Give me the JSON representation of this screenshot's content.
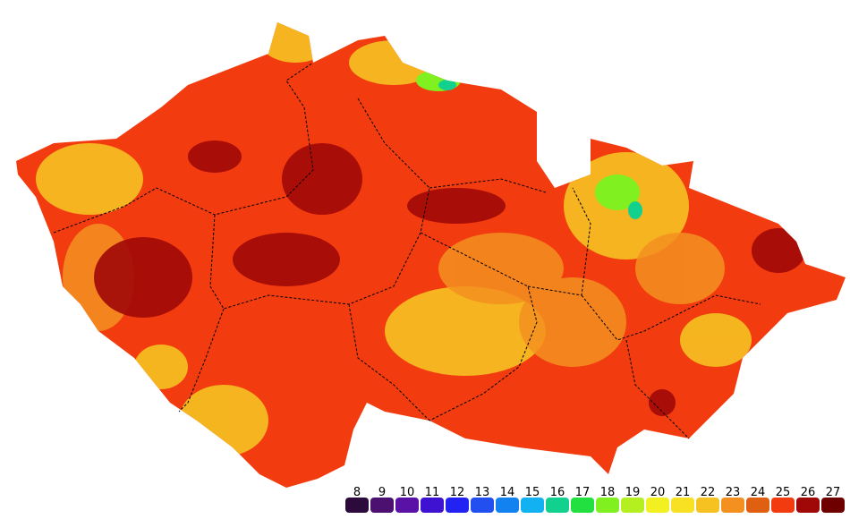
{
  "legend": {
    "items": [
      {
        "value": 8,
        "color": "#2c0b3c"
      },
      {
        "value": 9,
        "color": "#4b1070"
      },
      {
        "value": 10,
        "color": "#5a12a6"
      },
      {
        "value": 11,
        "color": "#3f12d2"
      },
      {
        "value": 12,
        "color": "#2222f2"
      },
      {
        "value": 13,
        "color": "#2250f0"
      },
      {
        "value": 14,
        "color": "#1282f0"
      },
      {
        "value": 15,
        "color": "#12b2f2"
      },
      {
        "value": 16,
        "color": "#12d08e"
      },
      {
        "value": 17,
        "color": "#22e040"
      },
      {
        "value": 18,
        "color": "#80f020"
      },
      {
        "value": 19,
        "color": "#b4f020"
      },
      {
        "value": 20,
        "color": "#f2f020"
      },
      {
        "value": 21,
        "color": "#f8e022"
      },
      {
        "value": 22,
        "color": "#f6c222"
      },
      {
        "value": 23,
        "color": "#f49020"
      },
      {
        "value": 24,
        "color": "#e06012"
      },
      {
        "value": 25,
        "color": "#f23c10"
      },
      {
        "value": 26,
        "color": "#a00808"
      },
      {
        "value": 27,
        "color": "#6e0000"
      }
    ]
  }
}
